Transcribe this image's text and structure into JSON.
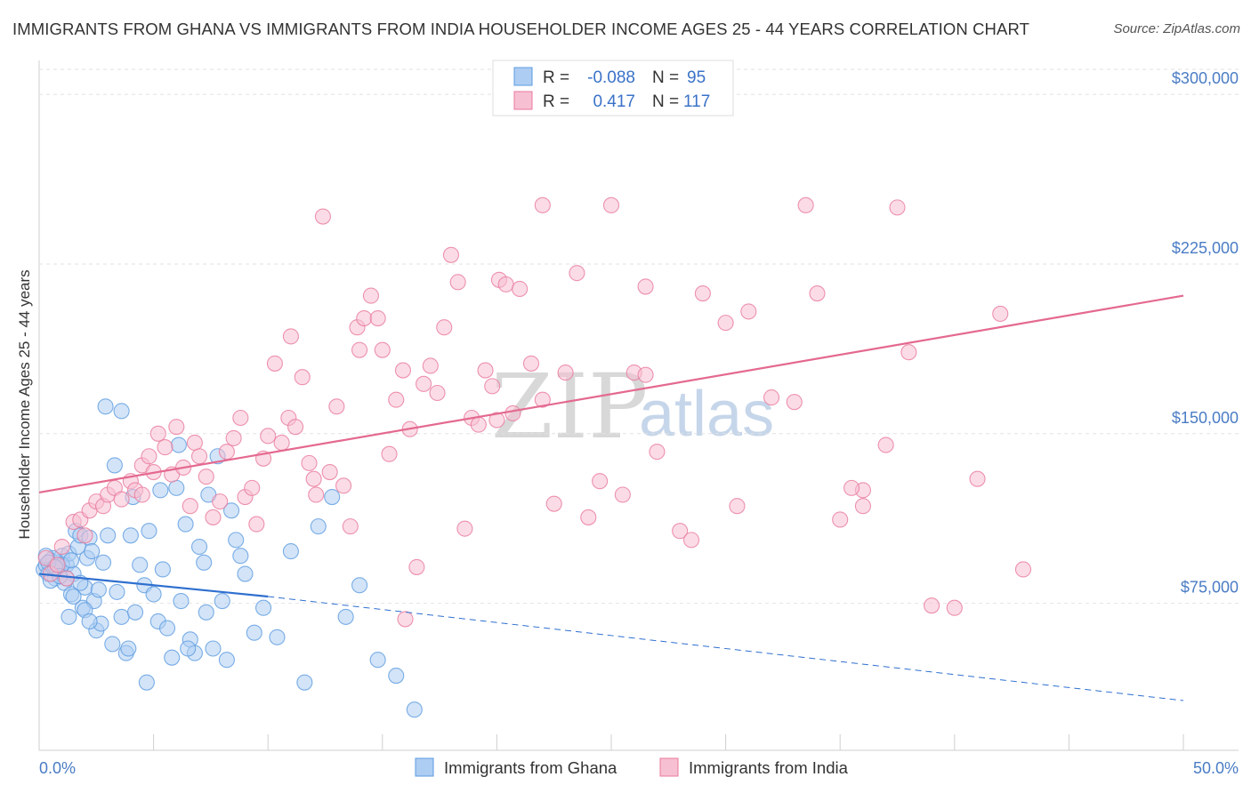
{
  "chart_data": {
    "type": "scatter",
    "title": "IMMIGRANTS FROM GHANA VS IMMIGRANTS FROM INDIA HOUSEHOLDER INCOME AGES 25 - 44 YEARS CORRELATION CHART",
    "source": "Source: ZipAtlas.com",
    "xlabel": "",
    "ylabel": "Householder Income Ages 25 - 44 years",
    "xlim": [
      0,
      50
    ],
    "ylim": [
      10000,
      315000
    ],
    "x_tick_labels": [
      "0.0%",
      "50.0%"
    ],
    "y_ticks": [
      75000,
      150000,
      225000,
      300000
    ],
    "y_tick_labels": [
      "$75,000",
      "$150,000",
      "$225,000",
      "$300,000"
    ],
    "watermark": {
      "zip": "ZIP",
      "atlas": "atlas"
    },
    "legend": {
      "rows": [
        {
          "r_label": "R =",
          "r_value": "-0.088",
          "n_label": "N =",
          "n_value": "95"
        },
        {
          "r_label": "R =",
          "r_value": "0.417",
          "n_label": "N =",
          "n_value": "117"
        }
      ]
    },
    "series": [
      {
        "name": "Immigrants from Ghana",
        "color": "#5b9be0",
        "fill": "#aecdf2",
        "trend": {
          "x0": 0,
          "y0": 88000,
          "x1": 10,
          "y1": 78000,
          "dash_x1": 50,
          "dash_y1": 32000
        },
        "points": [
          [
            0.2,
            90000
          ],
          [
            0.3,
            92000
          ],
          [
            0.4,
            88000
          ],
          [
            0.5,
            94000
          ],
          [
            0.6,
            91000
          ],
          [
            0.7,
            86000
          ],
          [
            0.8,
            93000
          ],
          [
            0.9,
            89000
          ],
          [
            1.0,
            96000
          ],
          [
            1.1,
            84000
          ],
          [
            1.2,
            92000
          ],
          [
            1.3,
            97000
          ],
          [
            1.4,
            79000
          ],
          [
            1.5,
            88000
          ],
          [
            1.6,
            107000
          ],
          [
            1.7,
            100000
          ],
          [
            1.8,
            105000
          ],
          [
            1.9,
            73000
          ],
          [
            2.0,
            82000
          ],
          [
            2.1,
            95000
          ],
          [
            0.5,
            85000
          ],
          [
            0.6,
            95000
          ],
          [
            0.8,
            90000
          ],
          [
            1.0,
            92000
          ],
          [
            1.2,
            86000
          ],
          [
            1.4,
            94000
          ],
          [
            0.3,
            96000
          ],
          [
            0.4,
            93000
          ],
          [
            0.7,
            91000
          ],
          [
            0.9,
            87000
          ],
          [
            2.2,
            104000
          ],
          [
            2.3,
            98000
          ],
          [
            2.4,
            76000
          ],
          [
            2.5,
            63000
          ],
          [
            2.6,
            81000
          ],
          [
            2.7,
            66000
          ],
          [
            2.8,
            93000
          ],
          [
            3.0,
            105000
          ],
          [
            3.2,
            57000
          ],
          [
            3.4,
            80000
          ],
          [
            3.6,
            69000
          ],
          [
            3.8,
            53000
          ],
          [
            4.0,
            105000
          ],
          [
            4.2,
            71000
          ],
          [
            4.4,
            92000
          ],
          [
            4.6,
            83000
          ],
          [
            4.8,
            107000
          ],
          [
            5.0,
            79000
          ],
          [
            5.2,
            67000
          ],
          [
            5.4,
            90000
          ],
          [
            5.6,
            64000
          ],
          [
            5.8,
            51000
          ],
          [
            6.0,
            126000
          ],
          [
            6.2,
            76000
          ],
          [
            6.4,
            110000
          ],
          [
            6.6,
            59000
          ],
          [
            6.8,
            53000
          ],
          [
            7.0,
            100000
          ],
          [
            7.2,
            93000
          ],
          [
            7.4,
            123000
          ],
          [
            7.6,
            55000
          ],
          [
            7.8,
            140000
          ],
          [
            8.0,
            76000
          ],
          [
            8.2,
            50000
          ],
          [
            8.4,
            116000
          ],
          [
            8.6,
            103000
          ],
          [
            8.8,
            96000
          ],
          [
            9.0,
            88000
          ],
          [
            9.4,
            62000
          ],
          [
            9.8,
            73000
          ],
          [
            10.4,
            60000
          ],
          [
            11.0,
            98000
          ],
          [
            11.6,
            40000
          ],
          [
            12.2,
            109000
          ],
          [
            12.8,
            122000
          ],
          [
            13.4,
            69000
          ],
          [
            14.0,
            83000
          ],
          [
            14.8,
            50000
          ],
          [
            15.6,
            43000
          ],
          [
            16.4,
            28000
          ],
          [
            2.9,
            162000
          ],
          [
            3.3,
            136000
          ],
          [
            3.6,
            160000
          ],
          [
            4.1,
            122000
          ],
          [
            5.3,
            125000
          ],
          [
            6.1,
            145000
          ],
          [
            6.5,
            55000
          ],
          [
            7.3,
            71000
          ],
          [
            4.7,
            40000
          ],
          [
            3.9,
            55000
          ],
          [
            2.0,
            72000
          ],
          [
            1.5,
            78000
          ],
          [
            2.2,
            67000
          ],
          [
            1.8,
            84000
          ],
          [
            1.3,
            69000
          ]
        ]
      },
      {
        "name": "Immigrants from India",
        "color": "#e8799b",
        "fill": "#f7c0d2",
        "trend": {
          "x0": 0,
          "y0": 124000,
          "x1": 50,
          "y1": 211000
        },
        "points": [
          [
            0.3,
            95000
          ],
          [
            0.5,
            88000
          ],
          [
            0.8,
            92000
          ],
          [
            1.0,
            100000
          ],
          [
            1.2,
            86000
          ],
          [
            1.5,
            111000
          ],
          [
            1.8,
            112000
          ],
          [
            2.0,
            105000
          ],
          [
            2.2,
            116000
          ],
          [
            2.5,
            120000
          ],
          [
            2.8,
            118000
          ],
          [
            3.0,
            123000
          ],
          [
            3.3,
            126000
          ],
          [
            3.6,
            121000
          ],
          [
            4.0,
            129000
          ],
          [
            4.2,
            125000
          ],
          [
            4.5,
            136000
          ],
          [
            4.8,
            140000
          ],
          [
            5.0,
            133000
          ],
          [
            5.2,
            150000
          ],
          [
            5.5,
            144000
          ],
          [
            5.8,
            132000
          ],
          [
            6.0,
            153000
          ],
          [
            6.3,
            135000
          ],
          [
            6.6,
            118000
          ],
          [
            6.8,
            146000
          ],
          [
            7.0,
            140000
          ],
          [
            7.3,
            131000
          ],
          [
            7.6,
            113000
          ],
          [
            7.9,
            120000
          ],
          [
            8.2,
            142000
          ],
          [
            8.5,
            148000
          ],
          [
            8.8,
            157000
          ],
          [
            9.0,
            122000
          ],
          [
            9.3,
            126000
          ],
          [
            9.5,
            110000
          ],
          [
            9.8,
            139000
          ],
          [
            10.0,
            149000
          ],
          [
            10.3,
            181000
          ],
          [
            10.6,
            146000
          ],
          [
            10.9,
            157000
          ],
          [
            11.2,
            153000
          ],
          [
            11.5,
            175000
          ],
          [
            11.8,
            137000
          ],
          [
            12.1,
            123000
          ],
          [
            12.4,
            246000
          ],
          [
            12.7,
            133000
          ],
          [
            13.0,
            162000
          ],
          [
            13.3,
            127000
          ],
          [
            13.6,
            109000
          ],
          [
            13.9,
            197000
          ],
          [
            14.2,
            201000
          ],
          [
            14.5,
            211000
          ],
          [
            14.8,
            201000
          ],
          [
            15.0,
            187000
          ],
          [
            15.3,
            141000
          ],
          [
            15.6,
            165000
          ],
          [
            15.9,
            178000
          ],
          [
            16.2,
            152000
          ],
          [
            16.5,
            91000
          ],
          [
            16.8,
            172000
          ],
          [
            17.1,
            180000
          ],
          [
            17.4,
            168000
          ],
          [
            17.7,
            197000
          ],
          [
            18.0,
            229000
          ],
          [
            18.3,
            217000
          ],
          [
            18.6,
            108000
          ],
          [
            18.9,
            157000
          ],
          [
            19.2,
            154000
          ],
          [
            19.5,
            178000
          ],
          [
            19.8,
            171000
          ],
          [
            20.1,
            218000
          ],
          [
            20.4,
            216000
          ],
          [
            20.7,
            159000
          ],
          [
            21.0,
            214000
          ],
          [
            21.5,
            181000
          ],
          [
            22.0,
            251000
          ],
          [
            22.5,
            119000
          ],
          [
            23.0,
            177000
          ],
          [
            23.5,
            221000
          ],
          [
            24.0,
            113000
          ],
          [
            24.5,
            129000
          ],
          [
            25.0,
            251000
          ],
          [
            25.5,
            123000
          ],
          [
            26.0,
            177000
          ],
          [
            26.5,
            215000
          ],
          [
            27.0,
            142000
          ],
          [
            28.0,
            107000
          ],
          [
            28.5,
            103000
          ],
          [
            29.0,
            212000
          ],
          [
            30.0,
            199000
          ],
          [
            31.0,
            204000
          ],
          [
            32.0,
            166000
          ],
          [
            33.0,
            164000
          ],
          [
            33.5,
            251000
          ],
          [
            34.0,
            212000
          ],
          [
            35.0,
            112000
          ],
          [
            36.0,
            125000
          ],
          [
            37.0,
            145000
          ],
          [
            37.5,
            250000
          ],
          [
            38.0,
            186000
          ],
          [
            39.0,
            74000
          ],
          [
            40.0,
            73000
          ],
          [
            41.0,
            130000
          ],
          [
            42.0,
            203000
          ],
          [
            43.0,
            90000
          ],
          [
            16.0,
            68000
          ],
          [
            26.5,
            176000
          ],
          [
            36.0,
            118000
          ],
          [
            20.0,
            156000
          ],
          [
            14.0,
            187000
          ],
          [
            12.0,
            130000
          ],
          [
            11.0,
            193000
          ],
          [
            22.0,
            165000
          ],
          [
            30.5,
            118000
          ],
          [
            35.5,
            126000
          ],
          [
            4.5,
            123000
          ]
        ]
      }
    ]
  }
}
